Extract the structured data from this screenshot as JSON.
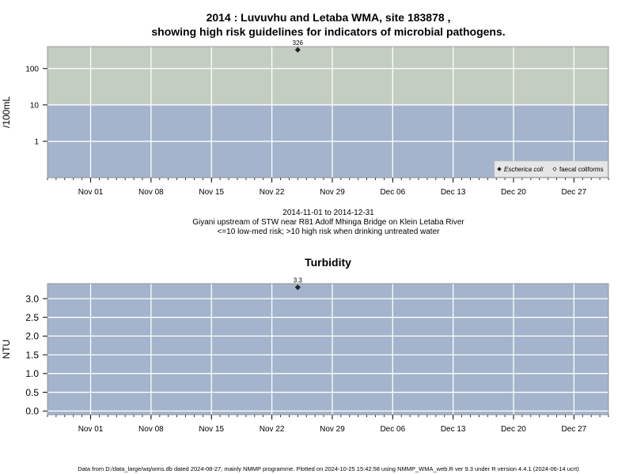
{
  "page": {
    "title_line1": "2014 : Luvuvhu and Letaba WMA, site 183878 ,",
    "title_line2": "showing high risk guidelines for indicators of microbial pathogens.",
    "caption_line1": "2014-11-01 to 2014-12-31",
    "caption_line2": "Giyani upstream of STW near R81 Adolf Mhinga Bridge on Klein Letaba River",
    "caption_line3": "<=10 low-med risk; >10 high risk when drinking untreated water",
    "footer": "Data from D:/data_large/wq/wms.db dated 2024-08-27, mainly NMMP programme. Plotted on 2024-10-25 15:42:58 using NMMP_WMA_web.R ver 9.3 under R version 4.4.1 (2024-06-14 ucrt)"
  },
  "colors": {
    "low_risk_band": "#a3b4cc",
    "high_risk_band": "#c4cdc1",
    "grid": "#ffffff",
    "point": "#222222",
    "legend_bg": "#e6e6e6"
  },
  "chart_data": [
    {
      "type": "scatter",
      "title": "",
      "ylabel": "/100mL",
      "xlabel": "",
      "yscale": "log",
      "x_range": [
        "2014-10-27",
        "2014-12-31"
      ],
      "x_ticks": [
        "Nov 01",
        "Nov 08",
        "Nov 15",
        "Nov 22",
        "Nov 29",
        "Dec 06",
        "Dec 13",
        "Dec 20",
        "Dec 27"
      ],
      "x_tick_dates": [
        "2014-11-01",
        "2014-11-08",
        "2014-11-15",
        "2014-11-22",
        "2014-11-29",
        "2014-12-06",
        "2014-12-13",
        "2014-12-20",
        "2014-12-27"
      ],
      "y_ticks": [
        "1",
        "10",
        "100"
      ],
      "y_tick_values": [
        1,
        10,
        100
      ],
      "ylim": [
        0.1,
        400
      ],
      "threshold": 10,
      "grid": true,
      "legend_position": "bottom-right",
      "series": [
        {
          "name": "Escherica coli",
          "marker": "filled-diamond",
          "points": [
            {
              "x": "2014-11-25",
              "y": 326,
              "label": "326"
            }
          ]
        },
        {
          "name": "faecal coliforms",
          "marker": "open-diamond",
          "points": []
        }
      ]
    },
    {
      "type": "scatter",
      "title": "Turbidity",
      "ylabel": "NTU",
      "xlabel": "",
      "x_range": [
        "2014-10-27",
        "2014-12-31"
      ],
      "x_ticks": [
        "Nov 01",
        "Nov 08",
        "Nov 15",
        "Nov 22",
        "Nov 29",
        "Dec 06",
        "Dec 13",
        "Dec 20",
        "Dec 27"
      ],
      "x_tick_dates": [
        "2014-11-01",
        "2014-11-08",
        "2014-11-15",
        "2014-11-22",
        "2014-11-29",
        "2014-12-06",
        "2014-12-13",
        "2014-12-20",
        "2014-12-27"
      ],
      "y_ticks": [
        "0.0",
        "0.5",
        "1.0",
        "1.5",
        "2.0",
        "2.5",
        "3.0"
      ],
      "y_tick_values": [
        0,
        0.5,
        1.0,
        1.5,
        2.0,
        2.5,
        3.0
      ],
      "ylim": [
        -0.1,
        3.4
      ],
      "grid": true,
      "series": [
        {
          "name": "",
          "marker": "filled-diamond",
          "points": [
            {
              "x": "2014-11-25",
              "y": 3.3,
              "label": "3.3"
            }
          ]
        }
      ]
    }
  ]
}
